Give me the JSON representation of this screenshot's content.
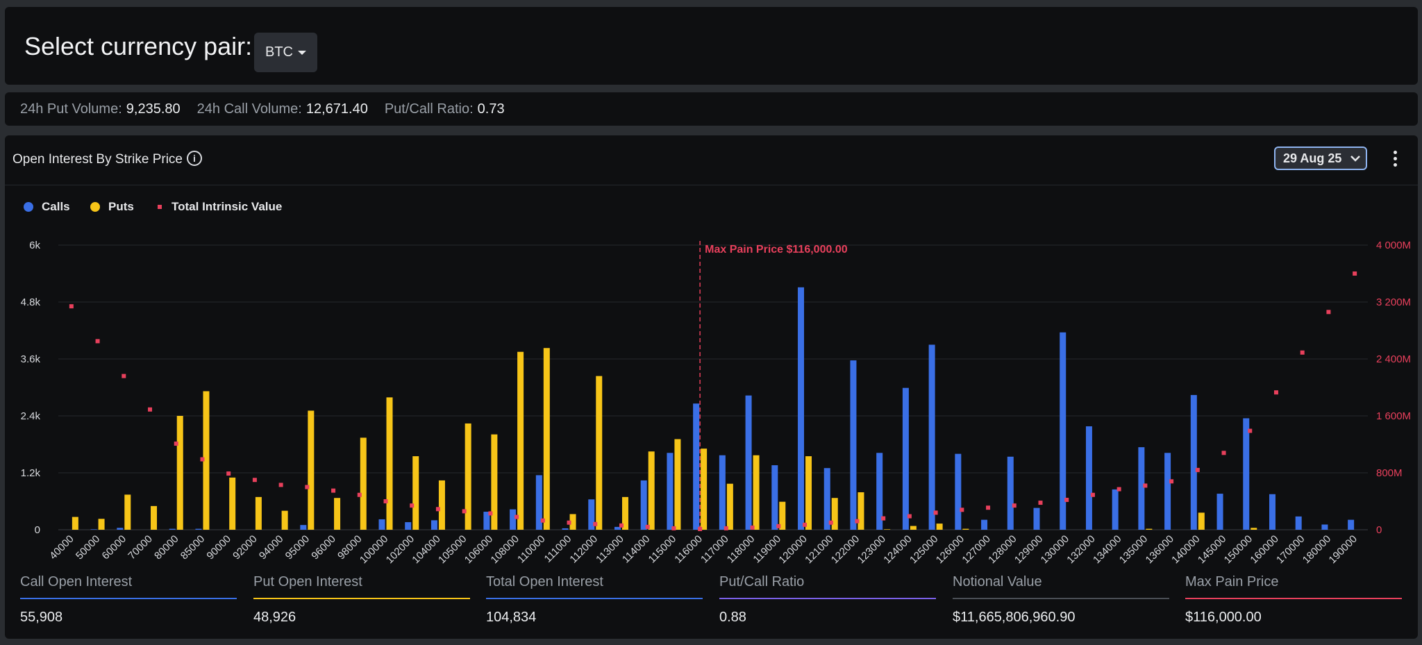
{
  "header": {
    "title": "Select currency pair:",
    "pair": "BTC"
  },
  "stats": [
    {
      "label": "24h Put Volume:",
      "value": "9,235.80"
    },
    {
      "label": "24h Call Volume:",
      "value": "12,671.40"
    },
    {
      "label": "Put/Call Ratio:",
      "value": "0.73"
    }
  ],
  "panel": {
    "title": "Open Interest By Strike Price",
    "date": "29 Aug 25"
  },
  "colors": {
    "calls": "#3a6fe6",
    "puts": "#f7c518",
    "intrinsic": "#e8405c",
    "ratio": "#7b61e8",
    "notional": "#4a4e55"
  },
  "legend": {
    "calls": "Calls",
    "puts": "Puts",
    "intrinsic": "Total Intrinsic Value"
  },
  "chart_data": {
    "type": "bar",
    "categories": [
      "40000",
      "50000",
      "60000",
      "70000",
      "80000",
      "85000",
      "90000",
      "92000",
      "94000",
      "95000",
      "96000",
      "98000",
      "100000",
      "102000",
      "104000",
      "105000",
      "106000",
      "108000",
      "110000",
      "111000",
      "112000",
      "113000",
      "114000",
      "115000",
      "116000",
      "117000",
      "118000",
      "119000",
      "120000",
      "121000",
      "122000",
      "123000",
      "124000",
      "125000",
      "126000",
      "127000",
      "128000",
      "129000",
      "130000",
      "132000",
      "134000",
      "135000",
      "136000",
      "140000",
      "145000",
      "150000",
      "160000",
      "170000",
      "180000",
      "190000"
    ],
    "series": [
      {
        "name": "Calls",
        "axis": "left",
        "values": [
          0,
          10,
          40,
          0,
          20,
          20,
          0,
          0,
          0,
          100,
          0,
          0,
          220,
          160,
          200,
          0,
          380,
          430,
          1150,
          30,
          640,
          60,
          1040,
          1620,
          2660,
          1570,
          2830,
          1360,
          5110,
          1300,
          3570,
          1620,
          2990,
          3900,
          1600,
          210,
          1540,
          460,
          4160,
          2180,
          850,
          1740,
          1620,
          2840,
          760,
          2350,
          750,
          280,
          110,
          210
        ]
      },
      {
        "name": "Puts",
        "axis": "left",
        "values": [
          270,
          230,
          740,
          500,
          2400,
          2920,
          1100,
          690,
          400,
          2510,
          670,
          1940,
          2790,
          1550,
          1040,
          2240,
          2010,
          3750,
          3830,
          330,
          3240,
          690,
          1650,
          1910,
          1710,
          970,
          1570,
          590,
          1550,
          670,
          790,
          10,
          80,
          130,
          20,
          0,
          0,
          0,
          0,
          0,
          0,
          20,
          0,
          360,
          0,
          40,
          0,
          0,
          0,
          0
        ]
      },
      {
        "name": "Total Intrinsic Value",
        "axis": "right",
        "type": "scatter",
        "values": [
          3140,
          2650,
          2160,
          1690,
          1210,
          990,
          790,
          700,
          630,
          600,
          550,
          490,
          400,
          340,
          290,
          260,
          230,
          180,
          130,
          100,
          80,
          60,
          40,
          20,
          10,
          20,
          30,
          50,
          70,
          100,
          120,
          160,
          190,
          240,
          280,
          310,
          340,
          380,
          420,
          490,
          570,
          620,
          680,
          840,
          1080,
          1390,
          1930,
          2490,
          3060,
          3600
        ]
      }
    ],
    "ylim": [
      0,
      6000
    ],
    "yticks": [
      "0",
      "1.2k",
      "2.4k",
      "3.6k",
      "4.8k",
      "6k"
    ],
    "y2lim": [
      0,
      4000
    ],
    "y2ticks": [
      "0",
      "800M",
      "1 600M",
      "2 400M",
      "3 200M",
      "4 000M"
    ],
    "max_pain_index": 24,
    "max_pain_label": "Max Pain Price $116,000.00",
    "grid": true,
    "legend_position": "top-left"
  },
  "summary": [
    {
      "label": "Call Open Interest",
      "value": "55,908",
      "color": "#3a6fe6"
    },
    {
      "label": "Put Open Interest",
      "value": "48,926",
      "color": "#f7c518"
    },
    {
      "label": "Total Open Interest",
      "value": "104,834",
      "color": "#3a6fe6"
    },
    {
      "label": "Put/Call Ratio",
      "value": "0.88",
      "color": "#7b61e8"
    },
    {
      "label": "Notional Value",
      "value": "$11,665,806,960.90",
      "color": "#4a4e55"
    },
    {
      "label": "Max Pain Price",
      "value": "$116,000.00",
      "color": "#e8405c"
    }
  ]
}
